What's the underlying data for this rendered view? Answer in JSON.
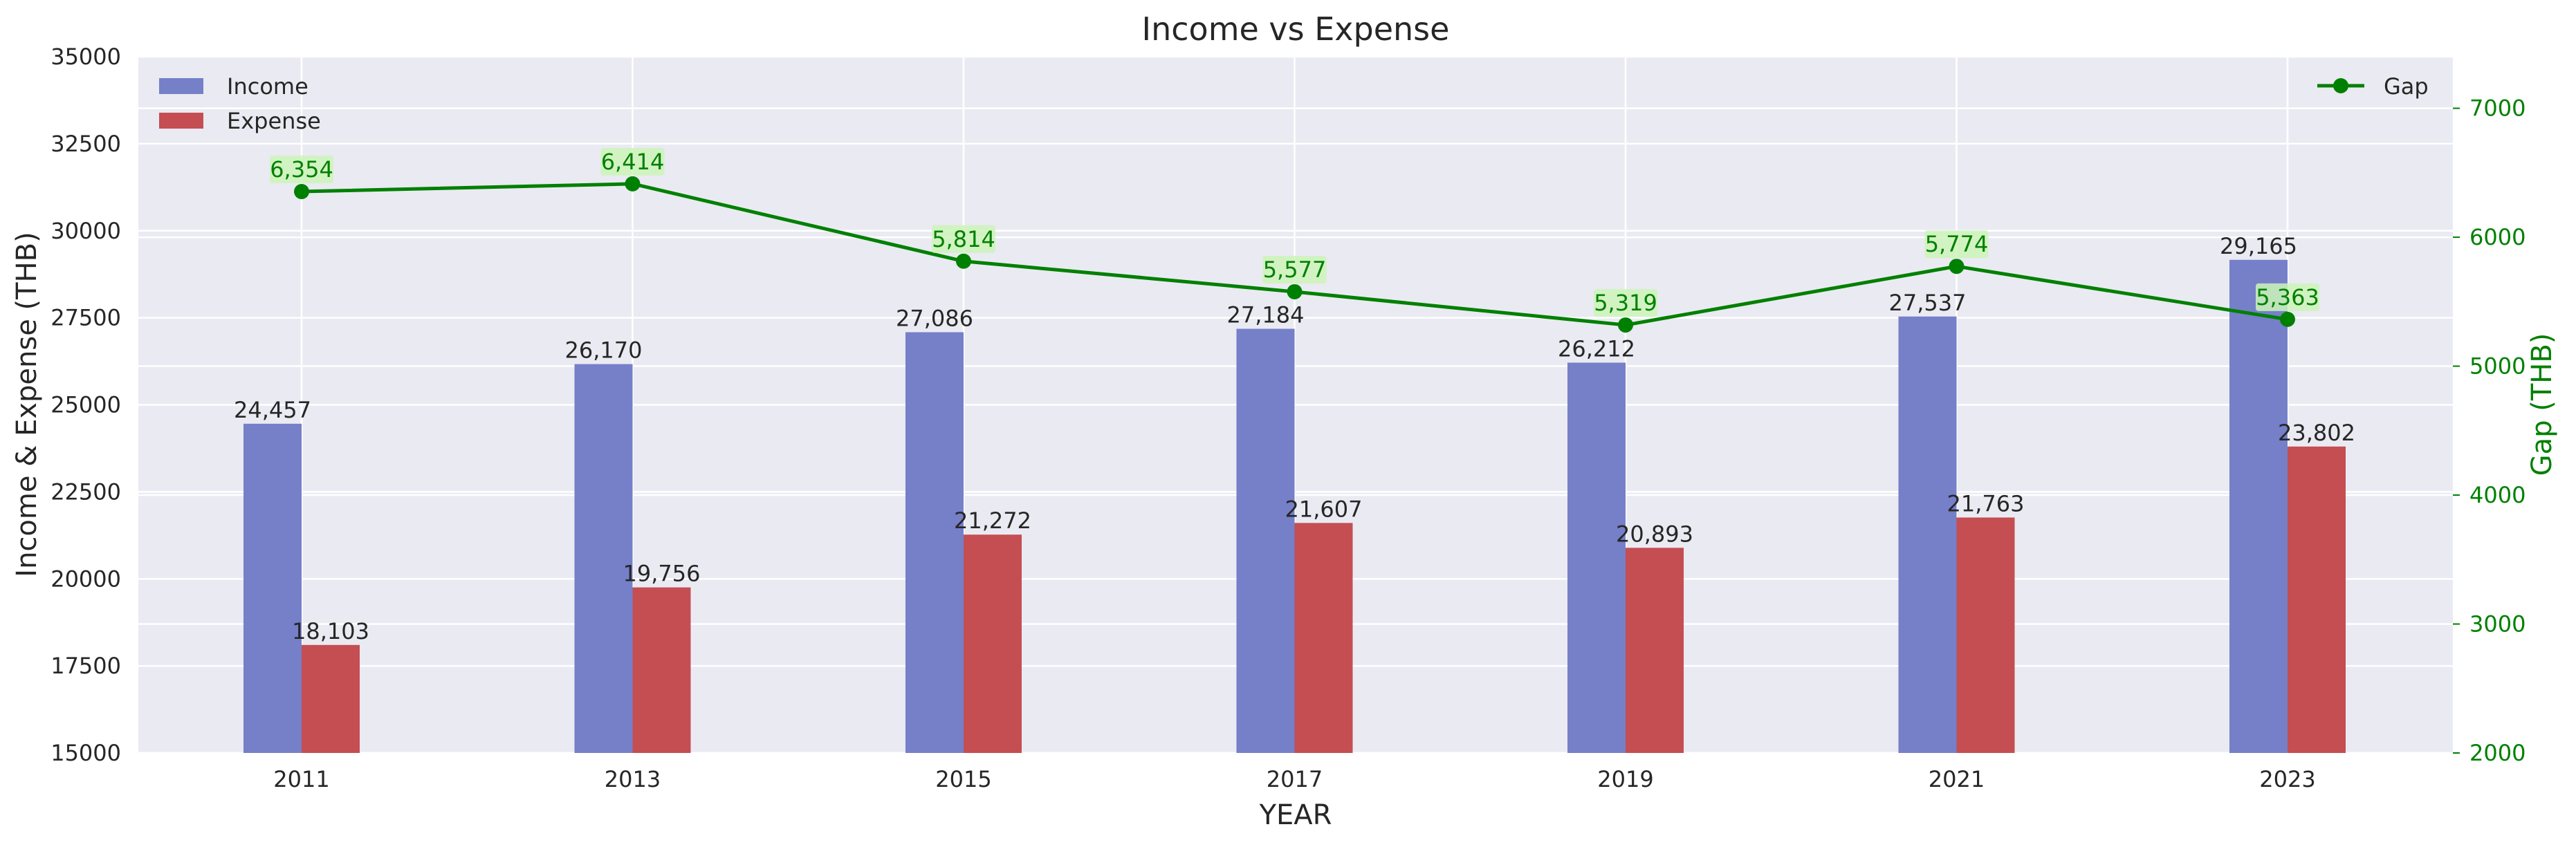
{
  "chart_data": {
    "type": "bar",
    "title": "Income vs Expense",
    "xlabel": "YEAR",
    "ylabel": "Income & Expense (THB)",
    "y2label": "Gap (THB)",
    "categories": [
      "2011",
      "2013",
      "2015",
      "2017",
      "2019",
      "2021",
      "2023"
    ],
    "ylim": [
      15000,
      35000
    ],
    "yticks": [
      "15000",
      "17500",
      "20000",
      "22500",
      "25000",
      "27500",
      "30000",
      "32500",
      "35000"
    ],
    "y2lim": [
      2000,
      7400
    ],
    "y2ticks": [
      "2000",
      "3000",
      "4000",
      "5000",
      "6000",
      "7000"
    ],
    "grid": true,
    "series": [
      {
        "name": "Income",
        "type": "bar",
        "color": "#7580c9",
        "values": [
          24457,
          26170,
          27086,
          27184,
          26212,
          27537,
          29165
        ],
        "labels": [
          "24,457",
          "26,170",
          "27,086",
          "27,184",
          "26,212",
          "27,537",
          "29,165"
        ]
      },
      {
        "name": "Expense",
        "type": "bar",
        "color": "#c44e52",
        "values": [
          18103,
          19756,
          21272,
          21607,
          20893,
          21763,
          23802
        ],
        "labels": [
          "18,103",
          "19,756",
          "21,272",
          "21,607",
          "20,893",
          "21,763",
          "23,802"
        ]
      },
      {
        "name": "Gap",
        "type": "line",
        "axis": "right",
        "color": "#008000",
        "values": [
          6354,
          6414,
          5814,
          5577,
          5319,
          5774,
          5363
        ],
        "labels": [
          "6,354",
          "6,414",
          "5,814",
          "5,577",
          "5,319",
          "5,774",
          "5,363"
        ]
      }
    ],
    "legend": {
      "left": "top-left",
      "right": "top-right"
    },
    "colors": {
      "plot_bg": "#eaeaf2",
      "gap_label_bg": "#ccf5b8"
    }
  }
}
